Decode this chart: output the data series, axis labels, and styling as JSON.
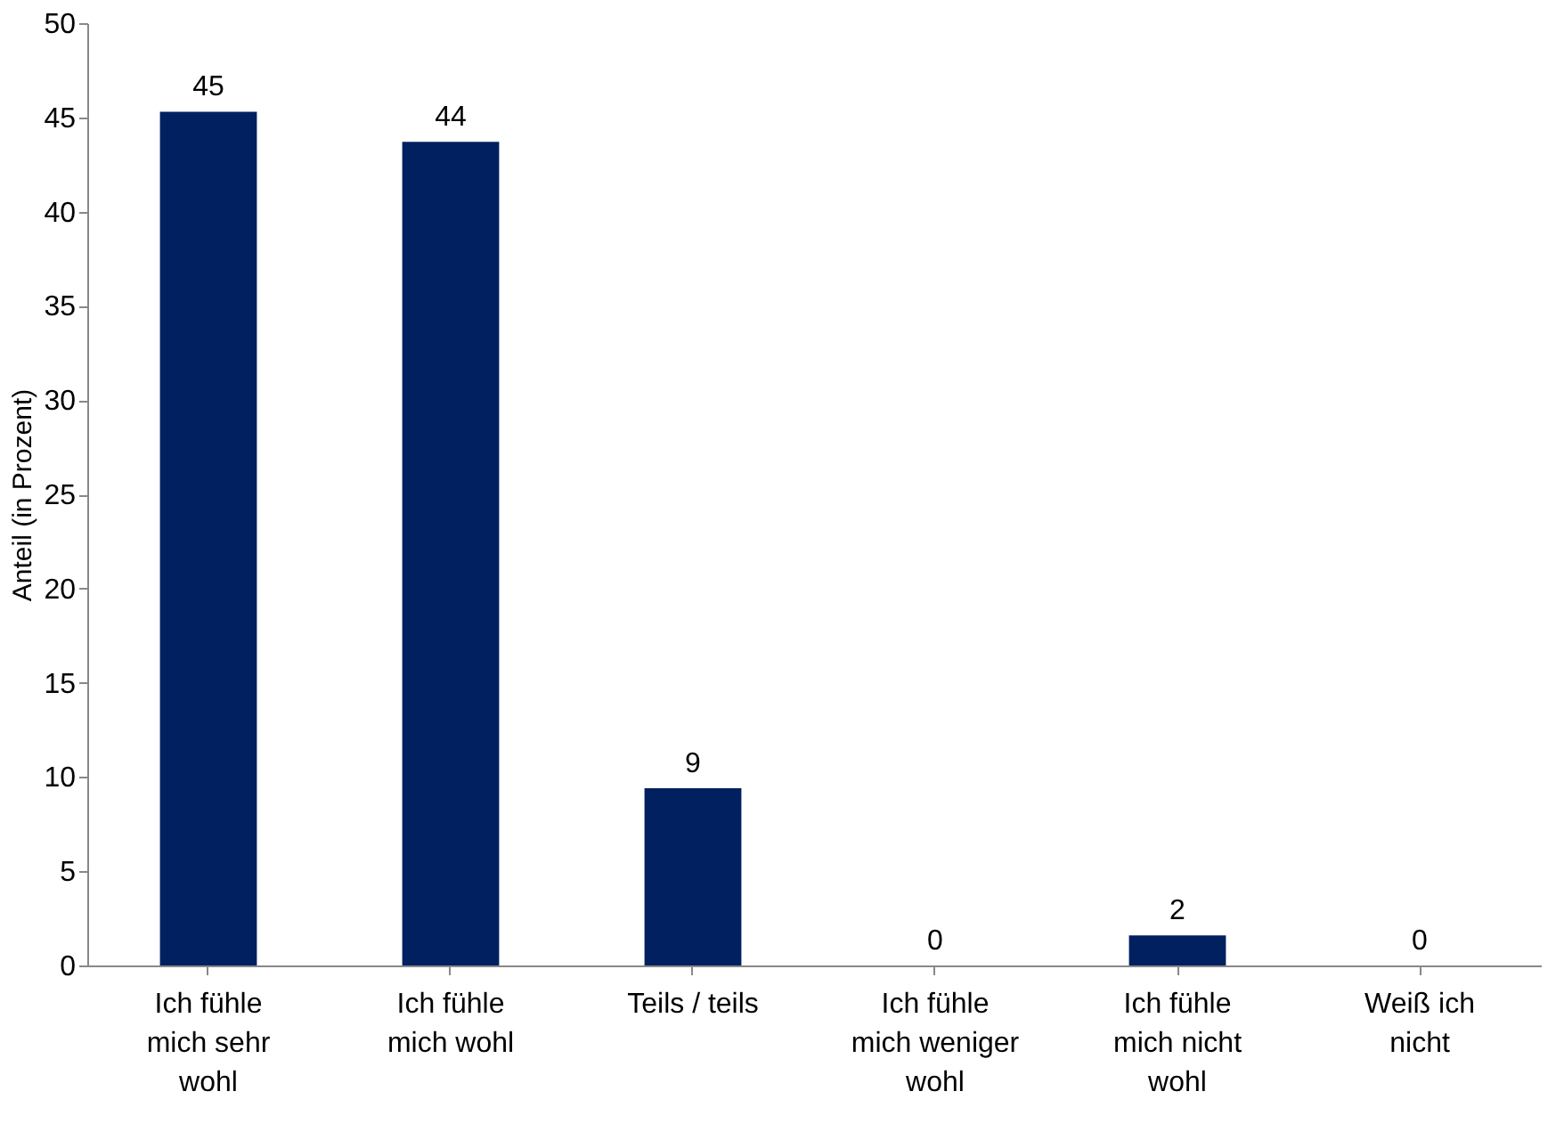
{
  "chart_data": {
    "type": "bar",
    "ylabel": "Anteil (in Prozent)",
    "categories": [
      "Ich fühle mich sehr wohl",
      "Ich fühle mich wohl",
      "Teils / teils",
      "Ich fühle mich weniger wohl",
      "Ich fühle mich nicht wohl",
      "Weiß ich nicht"
    ],
    "values": [
      45.3,
      43.7,
      9.4,
      0,
      1.6,
      0
    ],
    "value_labels": [
      "45",
      "44",
      "9",
      "0",
      "2",
      "0"
    ],
    "color": "#002060",
    "ylim": [
      0,
      50
    ],
    "yticks": [
      0,
      5,
      10,
      15,
      20,
      25,
      30,
      35,
      40,
      45,
      50
    ],
    "grid": false
  }
}
